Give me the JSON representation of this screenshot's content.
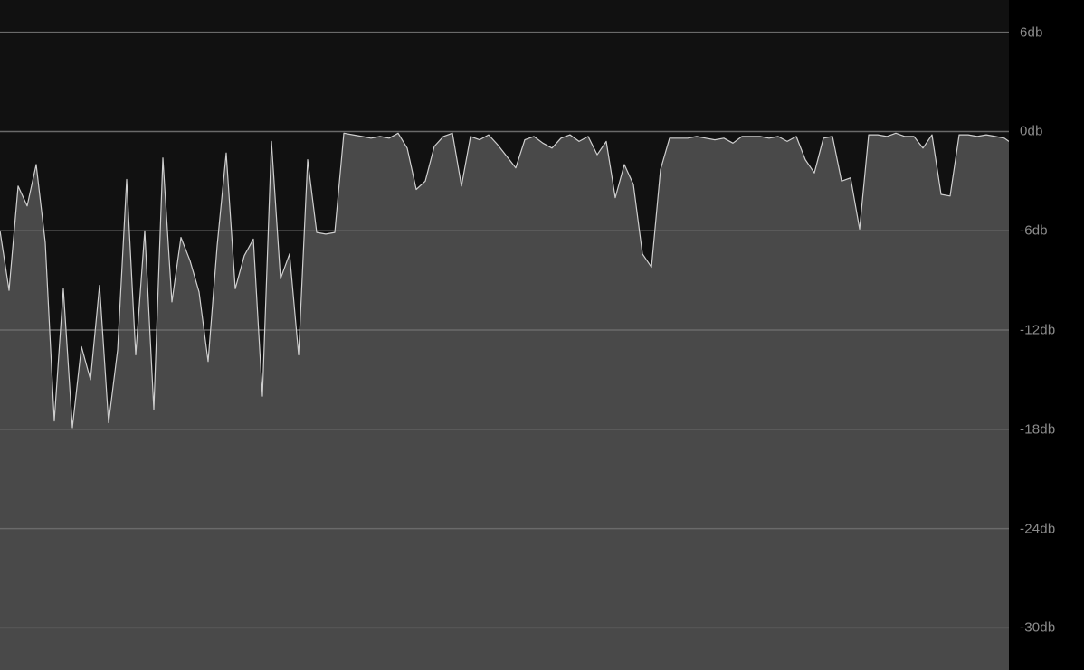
{
  "chart_data": {
    "type": "area",
    "title": "",
    "xlabel": "",
    "ylabel": "",
    "grid": true,
    "yaxis_position": "right",
    "ylim": [
      -32.55,
      7.95
    ],
    "y_ticks": [
      6,
      0,
      -6,
      -12,
      -18,
      -24,
      -30
    ],
    "y_tick_labels": [
      "6db",
      "0db",
      "-6db",
      "-12db",
      "-18db",
      "-24db",
      "-30db"
    ],
    "colors": {
      "background": "#111111",
      "fill": "#494949",
      "line": "#cfcfcf",
      "grid": "#6a6a6a",
      "tick_label": "#8c8c8c",
      "axis_panel": "#000000"
    },
    "series": [
      {
        "x": [
          0,
          10,
          20,
          30,
          40,
          50,
          60,
          70,
          80,
          90,
          100,
          110,
          120,
          130,
          140,
          150,
          160,
          170,
          180,
          190,
          200,
          210,
          220,
          230,
          240,
          250,
          260,
          270,
          280,
          290,
          300,
          310,
          320,
          330,
          340,
          350,
          360,
          370,
          380,
          390,
          400,
          410,
          420,
          430,
          440,
          450,
          460,
          470,
          480,
          490,
          500,
          510,
          520,
          530,
          540,
          550,
          560,
          570,
          580,
          590,
          600,
          610,
          620,
          630,
          640,
          650,
          660,
          670,
          680,
          690,
          700,
          710,
          720,
          730,
          740,
          750,
          760,
          770,
          780,
          790,
          800,
          810,
          820,
          830,
          840,
          850,
          860,
          870,
          880,
          890,
          900,
          910,
          920,
          930,
          940,
          950,
          960,
          970,
          980,
          990,
          1000,
          1010,
          1020,
          1030,
          1040,
          1050,
          1060,
          1070,
          1080,
          1090,
          1100,
          1110,
          1115
        ],
        "values": [
          -6.0,
          -9.6,
          -3.3,
          -4.5,
          -2.0,
          -6.7,
          -17.5,
          -9.5,
          -17.9,
          -13.0,
          -15.0,
          -9.3,
          -17.6,
          -13.2,
          -2.9,
          -13.5,
          -6.0,
          -16.8,
          -1.6,
          -10.3,
          -6.4,
          -7.8,
          -9.7,
          -13.9,
          -6.9,
          -1.3,
          -9.5,
          -7.5,
          -6.5,
          -16.0,
          -0.6,
          -8.9,
          -7.4,
          -13.5,
          -1.7,
          -6.1,
          -6.2,
          -6.1,
          -0.1,
          -0.2,
          -0.3,
          -0.4,
          -0.3,
          -0.4,
          -0.1,
          -1.0,
          -3.5,
          -3.0,
          -0.9,
          -0.3,
          -0.1,
          -3.3,
          -0.3,
          -0.5,
          -0.2,
          -0.8,
          -1.5,
          -2.2,
          -0.5,
          -0.3,
          -0.7,
          -1.0,
          -0.4,
          -0.2,
          -0.6,
          -0.3,
          -1.4,
          -0.6,
          -4.0,
          -2.0,
          -3.2,
          -7.4,
          -8.2,
          -2.3,
          -0.4,
          -0.4,
          -0.4,
          -0.3,
          -0.4,
          -0.5,
          -0.4,
          -0.7,
          -0.3,
          -0.3,
          -0.3,
          -0.4,
          -0.3,
          -0.6,
          -0.3,
          -1.7,
          -2.5,
          -0.4,
          -0.3,
          -3.0,
          -2.8,
          -5.9,
          -0.2,
          -0.2,
          -0.3,
          -0.1,
          -0.3,
          -0.3,
          -1.0,
          -0.2,
          -3.8,
          -3.9,
          -0.2,
          -0.2,
          -0.3,
          -0.2,
          -0.3,
          -0.4,
          -0.6
        ]
      }
    ]
  },
  "axis": {
    "tick_6": "6db",
    "tick_0": "0db",
    "tick_m6": "-6db",
    "tick_m12": "-12db",
    "tick_m18": "-18db",
    "tick_m24": "-24db",
    "tick_m30": "-30db"
  }
}
